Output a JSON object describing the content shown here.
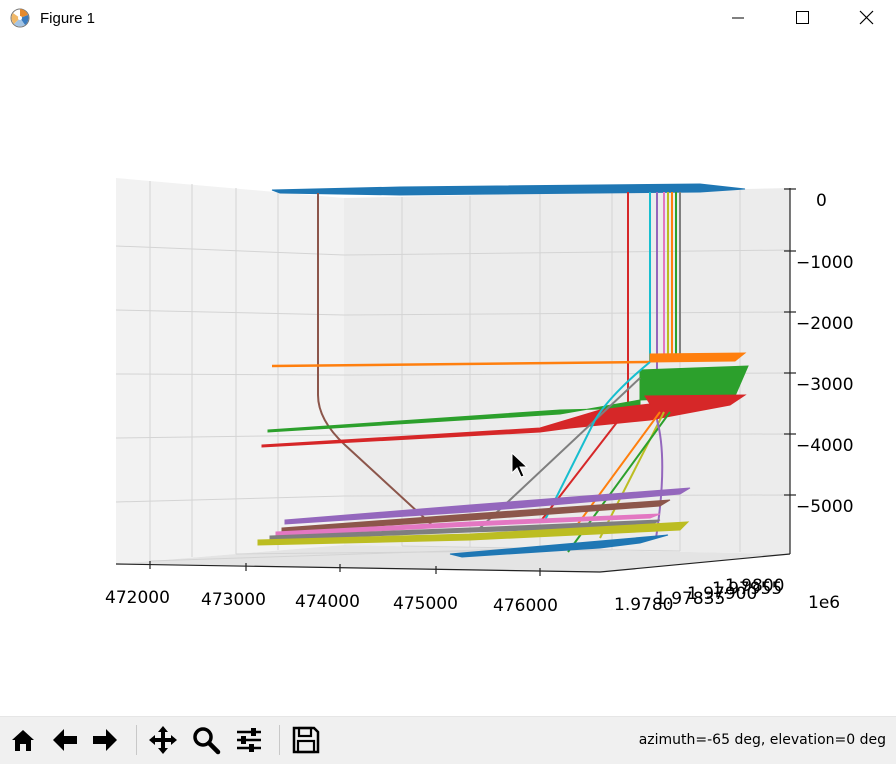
{
  "window": {
    "title": "Figure 1",
    "icon": "matplotlib-logo-icon",
    "controls": [
      "minimize-icon",
      "maximize-icon",
      "close-icon"
    ]
  },
  "toolbar": {
    "buttons": [
      "home-icon",
      "back-arrow-icon",
      "forward-arrow-icon",
      "pan-icon",
      "zoom-icon",
      "configure-subplots-icon",
      "save-icon"
    ],
    "status": "azimuth=-65 deg, elevation=0 deg"
  },
  "chart_data": {
    "type": "line",
    "projection": "3d",
    "view": {
      "azimuth": -65,
      "elevation": 0
    },
    "x_ticks": [
      "472000",
      "473000",
      "474000",
      "475000",
      "476000"
    ],
    "y_ticks": [
      "1.9780",
      "1.97835",
      "1.97900",
      "1.97955",
      "1.9800"
    ],
    "y_offset": "1e6",
    "z_ticks": [
      "0",
      "−1000",
      "−2000",
      "−3000",
      "−4000",
      "−5000"
    ],
    "colors": [
      "#1f77b4",
      "#ff7f0e",
      "#2ca02c",
      "#d62728",
      "#9467bd",
      "#8c564b",
      "#e377c2",
      "#7f7f7f",
      "#bcbd22",
      "#17becf"
    ]
  }
}
